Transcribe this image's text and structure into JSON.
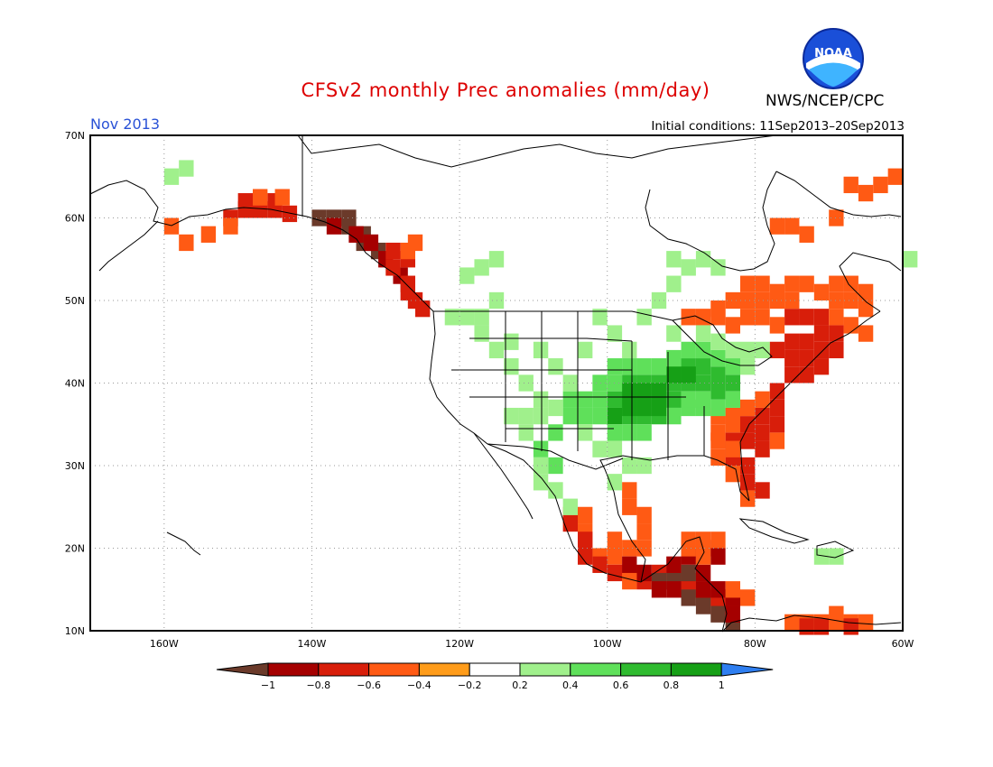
{
  "header": {
    "title": "CFSv2 monthly Prec anomalies (mm/day)",
    "agency": "NWS/NCEP/CPC",
    "logo_text": "NOAA",
    "month": "Nov 2013",
    "initial_conditions": "Initial conditions: 11Sep2013–20Sep2013"
  },
  "colors": {
    "title": "#dd0000",
    "month": "#2a52d6",
    "grid": "#999999",
    "coast": "#000000"
  },
  "map": {
    "lon_range": [
      -170,
      -60
    ],
    "lat_range": [
      10,
      70
    ],
    "lon_ticks": [
      {
        "value": -160,
        "label": "160W"
      },
      {
        "value": -140,
        "label": "140W"
      },
      {
        "value": -120,
        "label": "120W"
      },
      {
        "value": -100,
        "label": "100W"
      },
      {
        "value": -80,
        "label": "80W"
      },
      {
        "value": -60,
        "label": "60W"
      }
    ],
    "lat_ticks": [
      {
        "value": 10,
        "label": "10N"
      },
      {
        "value": 20,
        "label": "20N"
      },
      {
        "value": 30,
        "label": "30N"
      },
      {
        "value": 40,
        "label": "40N"
      },
      {
        "value": 50,
        "label": "50N"
      },
      {
        "value": 60,
        "label": "60N"
      },
      {
        "value": 70,
        "label": "70N"
      }
    ],
    "grid_lon": [
      -160,
      -140,
      -120,
      -100,
      -80
    ],
    "grid_lat": [
      20,
      30,
      40,
      50,
      60
    ]
  },
  "colorbar": {
    "bins": [
      {
        "color": "#6b3a2a",
        "range": "< -1"
      },
      {
        "color": "#a50000",
        "range": "-1 to -0.8"
      },
      {
        "color": "#d81e0a",
        "range": "-0.8 to -0.6"
      },
      {
        "color": "#ff5a14",
        "range": "-0.6 to -0.4"
      },
      {
        "color": "#ff9c1a",
        "range": "-0.4 to -0.2"
      },
      {
        "color": "#ffffff",
        "range": "-0.2 to 0.2"
      },
      {
        "color": "#a0f08c",
        "range": "0.2 to 0.4"
      },
      {
        "color": "#5fe05a",
        "range": "0.4 to 0.6"
      },
      {
        "color": "#2fbb2f",
        "range": "0.6 to 0.8"
      },
      {
        "color": "#16a016",
        "range": "0.8 to 1"
      },
      {
        "color": "#2e7ef0",
        "range": "> 1"
      }
    ],
    "labels": [
      "−1",
      "−0.8",
      "−0.6",
      "−0.4",
      "−0.2",
      "0.2",
      "0.4",
      "0.6",
      "0.8",
      "1"
    ]
  },
  "anomaly_regions": [
    {
      "name": "alaska-south-coast",
      "level": -3,
      "cells": [
        [
          -152,
          60
        ],
        [
          -150,
          61
        ],
        [
          -148,
          61
        ],
        [
          -146,
          61
        ],
        [
          -144,
          60.5
        ],
        [
          -150,
          62
        ],
        [
          -146,
          62
        ]
      ]
    },
    {
      "name": "alaska-panhandle",
      "level": -1,
      "cells": [
        [
          -140,
          60
        ],
        [
          -138,
          60
        ],
        [
          -136,
          59
        ],
        [
          -134,
          58
        ],
        [
          -132,
          56
        ],
        [
          -136,
          60
        ],
        [
          -134,
          57
        ]
      ]
    },
    {
      "name": "alaska-panhandle-dry",
      "level": -2,
      "cells": [
        [
          -138,
          59
        ],
        [
          -135,
          58
        ],
        [
          -133,
          57
        ],
        [
          -131,
          55
        ],
        [
          -129,
          53
        ]
      ]
    },
    {
      "name": "bc-coast",
      "level": -3,
      "cells": [
        [
          -130,
          54
        ],
        [
          -128,
          52
        ],
        [
          -128,
          51
        ],
        [
          -127,
          50
        ],
        [
          -126,
          49
        ],
        [
          -130,
          56
        ],
        [
          -128,
          55
        ]
      ]
    },
    {
      "name": "alaska-coast-orange",
      "level": -4,
      "cells": [
        [
          -160,
          59
        ],
        [
          -158,
          57
        ],
        [
          -155,
          58
        ],
        [
          -152,
          59
        ],
        [
          -148,
          62.5
        ],
        [
          -145,
          62.5
        ],
        [
          -128,
          56
        ],
        [
          -127,
          57
        ]
      ]
    },
    {
      "name": "northeast-us",
      "level": -3,
      "cells": [
        [
          -76,
          43
        ],
        [
          -74,
          43
        ],
        [
          -72,
          44
        ],
        [
          -70,
          44
        ],
        [
          -78,
          44
        ],
        [
          -76,
          45
        ],
        [
          -74,
          45
        ],
        [
          -72,
          46
        ],
        [
          -74,
          48
        ],
        [
          -72,
          48
        ],
        [
          -76,
          48
        ],
        [
          -70,
          46
        ],
        [
          -74,
          41
        ],
        [
          -72,
          42
        ],
        [
          -76,
          41
        ],
        [
          -78,
          39
        ],
        [
          -78,
          37
        ]
      ]
    },
    {
      "name": "quebec-orange",
      "level": -4,
      "cells": [
        [
          -86,
          49
        ],
        [
          -84,
          50
        ],
        [
          -82,
          50
        ],
        [
          -80,
          50
        ],
        [
          -78,
          51
        ],
        [
          -76,
          52
        ],
        [
          -74,
          52
        ],
        [
          -72,
          51
        ],
        [
          -70,
          50
        ],
        [
          -68,
          50
        ],
        [
          -66,
          49
        ],
        [
          -80,
          48
        ],
        [
          -82,
          48
        ],
        [
          -84,
          47
        ],
        [
          -78,
          47
        ],
        [
          -70,
          48
        ],
        [
          -68,
          47
        ],
        [
          -66,
          46
        ],
        [
          -86,
          48
        ],
        [
          -88,
          48
        ],
        [
          -90,
          48
        ],
        [
          -76,
          50
        ],
        [
          -70,
          52
        ],
        [
          -68,
          52
        ],
        [
          -66,
          51
        ],
        [
          -80,
          52
        ],
        [
          -82,
          52
        ],
        [
          -78,
          50
        ]
      ]
    },
    {
      "name": "labrador-orange",
      "level": -4,
      "cells": [
        [
          -78,
          59
        ],
        [
          -76,
          59
        ],
        [
          -74,
          58
        ],
        [
          -70,
          60
        ],
        [
          -66,
          63
        ],
        [
          -64,
          64
        ],
        [
          -68,
          64
        ],
        [
          -62,
          65
        ]
      ]
    },
    {
      "name": "southeast-us",
      "level": -3,
      "cells": [
        [
          -82,
          35
        ],
        [
          -80,
          34
        ],
        [
          -80,
          32
        ],
        [
          -82,
          30
        ],
        [
          -82,
          28
        ],
        [
          -80,
          27
        ],
        [
          -82,
          33
        ],
        [
          -84,
          33
        ],
        [
          -84,
          31
        ],
        [
          -80,
          36
        ],
        [
          -78,
          35
        ]
      ]
    },
    {
      "name": "southeast-orange",
      "level": -4,
      "cells": [
        [
          -84,
          35
        ],
        [
          -86,
          34
        ],
        [
          -84,
          36
        ],
        [
          -86,
          36
        ],
        [
          -82,
          37
        ],
        [
          -80,
          38
        ],
        [
          -84,
          29
        ],
        [
          -82,
          26
        ],
        [
          -86,
          31
        ],
        [
          -84,
          32
        ],
        [
          -86,
          33
        ],
        [
          -78,
          33
        ]
      ]
    },
    {
      "name": "mexico-west-orange",
      "level": -4,
      "cells": [
        [
          -106,
          24
        ],
        [
          -104,
          22
        ],
        [
          -104,
          20
        ],
        [
          -102,
          19
        ],
        [
          -100,
          19
        ],
        [
          -98,
          20
        ],
        [
          -96,
          22
        ],
        [
          -96,
          24
        ],
        [
          -98,
          25
        ],
        [
          -98,
          27
        ],
        [
          -96,
          20
        ],
        [
          -100,
          21
        ],
        [
          -104,
          24
        ]
      ]
    },
    {
      "name": "mexico-south-red",
      "level": -3,
      "cells": [
        [
          -104,
          19
        ],
        [
          -102,
          18
        ],
        [
          -100,
          17
        ],
        [
          -98,
          17
        ],
        [
          -96,
          16
        ],
        [
          -94,
          17
        ],
        [
          -92,
          17
        ],
        [
          -90,
          16
        ],
        [
          -88,
          15
        ],
        [
          -86,
          14
        ],
        [
          -86,
          13
        ],
        [
          -84,
          13
        ],
        [
          -88,
          14
        ],
        [
          -90,
          15
        ],
        [
          -104,
          21
        ],
        [
          -106,
          23
        ]
      ]
    },
    {
      "name": "central-america-brown",
      "level": -1,
      "cells": [
        [
          -92,
          16
        ],
        [
          -90,
          14
        ],
        [
          -88,
          13
        ],
        [
          -86,
          12
        ],
        [
          -84,
          11
        ],
        [
          -94,
          16
        ],
        [
          -90,
          17
        ]
      ]
    },
    {
      "name": "central-america-darkred",
      "level": -2,
      "cells": [
        [
          -96,
          17
        ],
        [
          -94,
          15
        ],
        [
          -92,
          15
        ],
        [
          -88,
          15
        ],
        [
          -86,
          15
        ],
        [
          -84,
          14
        ],
        [
          -84,
          12
        ],
        [
          -98,
          18
        ],
        [
          -92,
          18
        ],
        [
          -90,
          19
        ],
        [
          -88,
          20
        ],
        [
          -86,
          19
        ],
        [
          -88,
          17
        ]
      ]
    },
    {
      "name": "yucatan-orange",
      "level": -4,
      "cells": [
        [
          -90,
          21
        ],
        [
          -88,
          21
        ],
        [
          -86,
          21
        ],
        [
          -88,
          19
        ],
        [
          -90,
          20
        ],
        [
          -84,
          15
        ],
        [
          -82,
          14
        ],
        [
          -98,
          16
        ]
      ]
    },
    {
      "name": "south-america-orange",
      "level": -4,
      "cells": [
        [
          -74,
          11
        ],
        [
          -72,
          11
        ],
        [
          -70,
          11
        ],
        [
          -68,
          11
        ],
        [
          -66,
          11
        ],
        [
          -76,
          11
        ],
        [
          -70,
          12
        ]
      ]
    },
    {
      "name": "south-america-red",
      "level": -3,
      "cells": [
        [
          -72,
          10.5
        ],
        [
          -68,
          10.5
        ],
        [
          -74,
          10.5
        ]
      ]
    },
    {
      "name": "central-us-green",
      "level": 3,
      "cells": [
        [
          -98,
          40
        ],
        [
          -96,
          40
        ],
        [
          -94,
          40
        ],
        [
          -92,
          40
        ],
        [
          -90,
          40
        ],
        [
          -96,
          38
        ],
        [
          -94,
          38
        ],
        [
          -92,
          38
        ],
        [
          -98,
          38
        ],
        [
          -96,
          36
        ],
        [
          -94,
          36
        ],
        [
          -98,
          36
        ],
        [
          -92,
          42
        ],
        [
          -90,
          42
        ],
        [
          -88,
          42
        ],
        [
          -86,
          41
        ],
        [
          -88,
          40
        ],
        [
          -86,
          39
        ],
        [
          -84,
          40
        ],
        [
          -100,
          38
        ]
      ]
    },
    {
      "name": "central-us-darkgreen",
      "level": 4,
      "cells": [
        [
          -98,
          39
        ],
        [
          -96,
          39
        ],
        [
          -94,
          39
        ],
        [
          -96,
          37
        ],
        [
          -94,
          37
        ],
        [
          -98,
          37
        ],
        [
          -92,
          41
        ],
        [
          -90,
          41
        ],
        [
          -100,
          36
        ]
      ]
    },
    {
      "name": "great-plains-medgreen",
      "level": 2,
      "cells": [
        [
          -102,
          40
        ],
        [
          -102,
          38
        ],
        [
          -100,
          40
        ],
        [
          -100,
          42
        ],
        [
          -98,
          42
        ],
        [
          -96,
          42
        ],
        [
          -94,
          42
        ],
        [
          -92,
          43
        ],
        [
          -90,
          44
        ],
        [
          -88,
          44
        ],
        [
          -86,
          43
        ],
        [
          -84,
          42
        ],
        [
          -84,
          38
        ],
        [
          -86,
          37
        ],
        [
          -88,
          37
        ],
        [
          -90,
          37
        ],
        [
          -92,
          36
        ],
        [
          -96,
          34
        ],
        [
          -98,
          34
        ],
        [
          -100,
          34
        ],
        [
          -102,
          36
        ],
        [
          -104,
          36
        ],
        [
          -106,
          36
        ],
        [
          -108,
          34
        ],
        [
          -110,
          32
        ],
        [
          -108,
          30
        ],
        [
          -106,
          38
        ],
        [
          -104,
          38
        ],
        [
          -90,
          38
        ],
        [
          -88,
          38
        ]
      ]
    },
    {
      "name": "west-us-lightgreen",
      "level": 1,
      "cells": [
        [
          -112,
          36
        ],
        [
          -110,
          36
        ],
        [
          -108,
          37
        ],
        [
          -106,
          40
        ],
        [
          -110,
          38
        ],
        [
          -112,
          34
        ],
        [
          -114,
          36
        ],
        [
          -110,
          30
        ],
        [
          -110,
          28
        ],
        [
          -108,
          27
        ],
        [
          -106,
          25
        ],
        [
          -112,
          40
        ],
        [
          -114,
          42
        ],
        [
          -116,
          44
        ],
        [
          -118,
          46
        ],
        [
          -120,
          48
        ],
        [
          -122,
          48
        ],
        [
          -118,
          48
        ],
        [
          -116,
          50
        ],
        [
          -114,
          45
        ],
        [
          -110,
          44
        ],
        [
          -108,
          42
        ],
        [
          -104,
          44
        ],
        [
          -100,
          46
        ],
        [
          -98,
          44
        ],
        [
          -102,
          48
        ],
        [
          -96,
          48
        ],
        [
          -92,
          52
        ],
        [
          -90,
          54
        ],
        [
          -88,
          55
        ],
        [
          -86,
          54
        ],
        [
          -92,
          55
        ],
        [
          -94,
          50
        ],
        [
          -116,
          55
        ],
        [
          -118,
          54
        ],
        [
          -120,
          53
        ],
        [
          -160,
          65
        ],
        [
          -158,
          66
        ],
        [
          -104,
          34
        ],
        [
          -102,
          32
        ],
        [
          -100,
          32
        ],
        [
          -96,
          30
        ],
        [
          -92,
          46
        ],
        [
          -88,
          46
        ],
        [
          -86,
          45
        ],
        [
          -84,
          44
        ],
        [
          -82,
          44
        ],
        [
          -80,
          44
        ],
        [
          -82,
          42
        ],
        [
          -100,
          28
        ],
        [
          -98,
          30
        ]
      ]
    },
    {
      "name": "caribbean-lightgreen",
      "level": 1,
      "cells": [
        [
          -72,
          19
        ],
        [
          -70,
          19
        ]
      ]
    },
    {
      "name": "labrador-lightgreen",
      "level": 1,
      "cells": [
        [
          -60,
          55
        ]
      ]
    }
  ]
}
